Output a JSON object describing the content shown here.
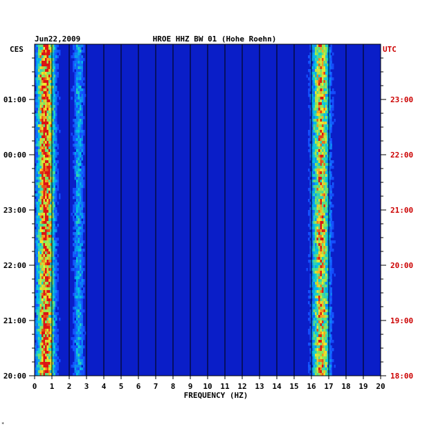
{
  "chart_data": {
    "type": "heatmap",
    "date": "Jun22,2009",
    "title": "HROE HHZ BW 01 (Hohe Roehn)",
    "left_timezone": "CES",
    "right_timezone": "UTC",
    "xlabel": "FREQUENCY (HZ)",
    "xlim": [
      0,
      20
    ],
    "x_ticks": [
      "0",
      "1",
      "2",
      "3",
      "4",
      "5",
      "6",
      "7",
      "8",
      "9",
      "10",
      "11",
      "12",
      "13",
      "14",
      "15",
      "16",
      "17",
      "18",
      "19",
      "20"
    ],
    "time_span_hours": [
      20,
      2
    ],
    "y_ticks_left": [
      "01:00",
      "00:00",
      "23:00",
      "22:00",
      "21:00",
      "20:00"
    ],
    "y_ticks_right": [
      "23:00",
      "22:00",
      "21:00",
      "20:00",
      "19:00",
      "18:00"
    ],
    "colors": {
      "background": "#0a1ec8",
      "accent_red": "#cc0000",
      "grid": "#000000"
    },
    "energy_bands_hz": [
      {
        "center": 0.6,
        "width": 0.5,
        "level": 0.9
      },
      {
        "center": 2.5,
        "width": 0.3,
        "level": 0.35
      },
      {
        "center": 16.5,
        "width": 0.5,
        "level": 0.75
      }
    ]
  },
  "footer_mark": "*"
}
